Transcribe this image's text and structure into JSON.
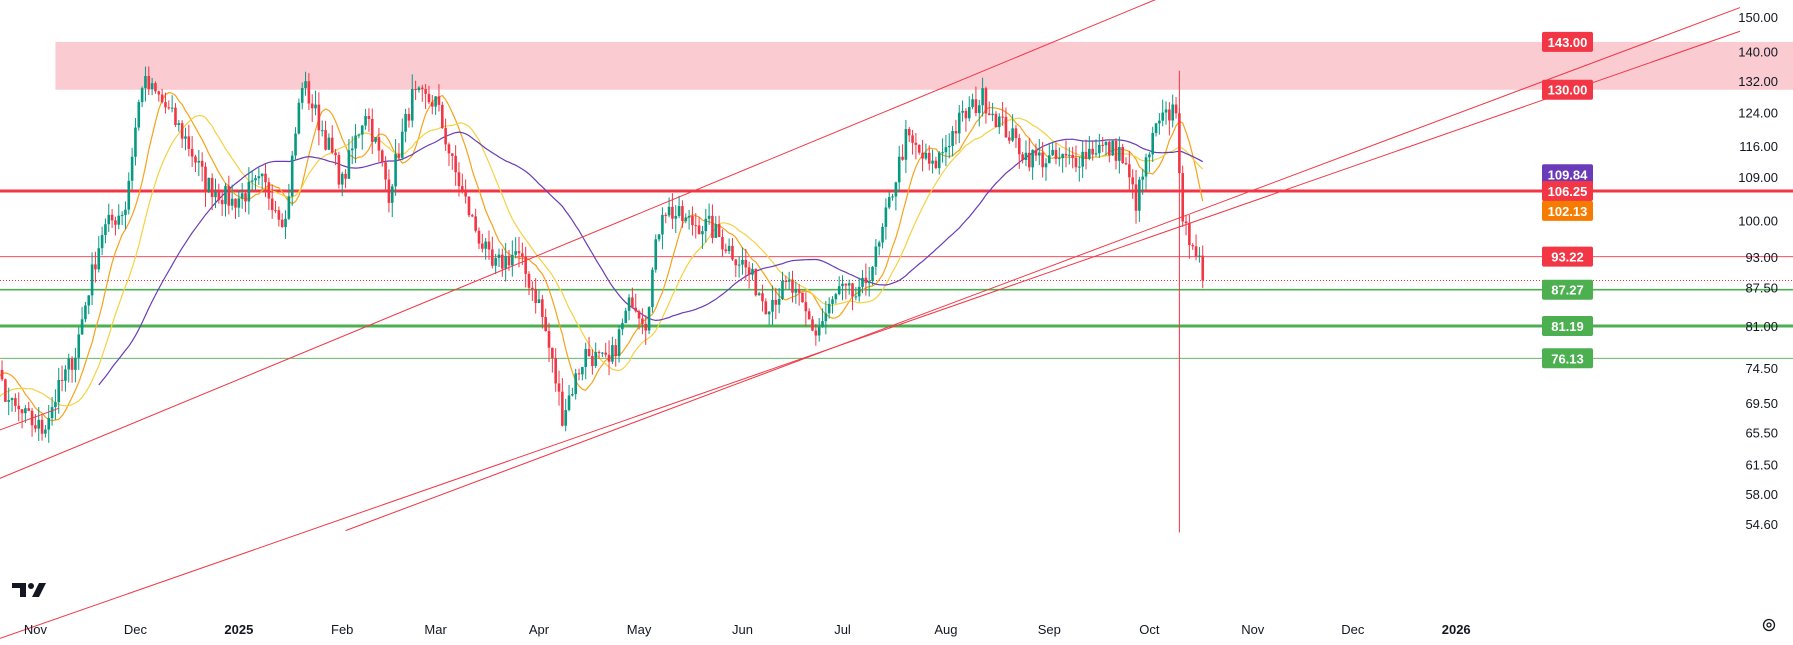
{
  "colors": {
    "up": "#089981",
    "down": "#f23645",
    "resistance": "#f23645",
    "support": "#4caf50",
    "zone_fill": "#f7a9b2",
    "ma_fast": "#f7a21b",
    "ma_mid": "#f5d142",
    "ma_slow": "#6a3bb8",
    "grid_text": "#131722"
  },
  "logo": {
    "icon": "tradingview-logo-icon"
  },
  "settings": {
    "icon": "gear-icon"
  },
  "chart_data": {
    "type": "candlestick",
    "y_scale": "log",
    "ylim": [
      53,
      153
    ],
    "xlim": [
      "2024-10-01",
      "2026-01-31"
    ],
    "y_ticks": [
      {
        "value": 150,
        "label": "150.00"
      },
      {
        "value": 140,
        "label": "140.00"
      },
      {
        "value": 132,
        "label": "132.00"
      },
      {
        "value": 124,
        "label": "124.00"
      },
      {
        "value": 116,
        "label": "116.00"
      },
      {
        "value": 109,
        "label": "109.00"
      },
      {
        "value": 100,
        "label": "100.00"
      },
      {
        "value": 93,
        "label": "93.00"
      },
      {
        "value": 87.5,
        "label": "87.50"
      },
      {
        "value": 81,
        "label": "81.00"
      },
      {
        "value": 74.5,
        "label": "74.50"
      },
      {
        "value": 69.5,
        "label": "69.50"
      },
      {
        "value": 65.5,
        "label": "65.50"
      },
      {
        "value": 61.5,
        "label": "61.50"
      },
      {
        "value": 58,
        "label": "58.00"
      },
      {
        "value": 54.6,
        "label": "54.60"
      }
    ],
    "x_ticks": [
      {
        "date": "2024-11-01",
        "label": "Nov",
        "bold": false
      },
      {
        "date": "2024-12-01",
        "label": "Dec",
        "bold": false
      },
      {
        "date": "2025-01-01",
        "label": "2025",
        "bold": true
      },
      {
        "date": "2025-02-01",
        "label": "Feb",
        "bold": false
      },
      {
        "date": "2025-03-01",
        "label": "Mar",
        "bold": false
      },
      {
        "date": "2025-04-01",
        "label": "Apr",
        "bold": false
      },
      {
        "date": "2025-05-01",
        "label": "May",
        "bold": false
      },
      {
        "date": "2025-06-01",
        "label": "Jun",
        "bold": false
      },
      {
        "date": "2025-07-01",
        "label": "Jul",
        "bold": false
      },
      {
        "date": "2025-08-01",
        "label": "Aug",
        "bold": false
      },
      {
        "date": "2025-09-01",
        "label": "Sep",
        "bold": false
      },
      {
        "date": "2025-10-01",
        "label": "Oct",
        "bold": false
      },
      {
        "date": "2025-11-01",
        "label": "Nov",
        "bold": false
      },
      {
        "date": "2025-12-01",
        "label": "Dec",
        "bold": false
      },
      {
        "date": "2026-01-01",
        "label": "2026",
        "bold": true
      }
    ],
    "resistance_zone": {
      "low": 130.0,
      "high": 143.0,
      "start": "2024-11-07"
    },
    "horizontal_levels": [
      {
        "value": 106.25,
        "label": "106.25",
        "kind": "resistance",
        "weight": "thick"
      },
      {
        "value": 93.22,
        "label": "93.22",
        "kind": "resistance",
        "weight": "thin"
      },
      {
        "value": 87.27,
        "label": "87.27",
        "kind": "support",
        "weight": "medium"
      },
      {
        "value": 81.19,
        "label": "81.19",
        "kind": "support",
        "weight": "thick"
      },
      {
        "value": 76.13,
        "label": "76.13",
        "kind": "support",
        "weight": "thin"
      }
    ],
    "current_price_line": {
      "value": 88.9
    },
    "badges": [
      {
        "value": 143.0,
        "label": "143.00",
        "color": "#f23645"
      },
      {
        "value": 130.0,
        "label": "130.00",
        "color": "#f23645"
      },
      {
        "value": 109.84,
        "label": "109.84",
        "color": "#6a3bb8"
      },
      {
        "value": 106.25,
        "label": "106.25",
        "color": "#f23645"
      },
      {
        "value": 102.13,
        "label": "102.13",
        "color": "#f57c00"
      },
      {
        "value": 93.22,
        "label": "93.22",
        "color": "#f23645"
      },
      {
        "value": 87.27,
        "label": "87.27",
        "color": "#4caf50"
      },
      {
        "value": 81.19,
        "label": "81.19",
        "color": "#4caf50"
      },
      {
        "value": 76.13,
        "label": "76.13",
        "color": "#4caf50"
      }
    ],
    "trendlines": [
      {
        "name": "channel-upper",
        "p1": {
          "date": "2025-03-14",
          "value": 89.0
        },
        "p2": {
          "date": "2025-08-15",
          "value": 136.0
        }
      },
      {
        "name": "channel-lower",
        "p1": {
          "date": "2025-06-24",
          "value": 77.0
        },
        "p2": {
          "date": "2025-10-16",
          "value": 100.3
        }
      },
      {
        "name": "lower-trendline",
        "p1": {
          "date": "2025-02-02",
          "value": 54.0
        },
        "p2": {
          "date": "2025-04-08",
          "value": 63.5
        }
      },
      {
        "name": "early-trendline",
        "p1": {
          "date": "2024-10-01",
          "value": 62.8
        },
        "p2": {
          "date": "2024-11-08",
          "value": 68.9
        }
      }
    ],
    "spike_line": {
      "date": "2025-10-10",
      "low": 53.8,
      "high": 135.0
    },
    "price_anchors": [
      [
        "2024-10-01",
        66
      ],
      [
        "2024-10-12",
        70
      ],
      [
        "2024-10-18",
        76
      ],
      [
        "2024-10-25",
        69
      ],
      [
        "2024-11-03",
        66
      ],
      [
        "2024-11-13",
        77
      ],
      [
        "2024-11-21",
        98
      ],
      [
        "2024-11-28",
        103
      ],
      [
        "2024-12-03",
        132
      ],
      [
        "2024-12-08",
        128
      ],
      [
        "2024-12-16",
        118
      ],
      [
        "2024-12-22",
        108
      ],
      [
        "2024-12-30",
        104
      ],
      [
        "2025-01-08",
        108
      ],
      [
        "2025-01-15",
        100
      ],
      [
        "2025-01-20",
        132
      ],
      [
        "2025-01-25",
        122
      ],
      [
        "2025-02-01",
        108
      ],
      [
        "2025-02-08",
        125
      ],
      [
        "2025-02-15",
        106
      ],
      [
        "2025-02-22",
        128
      ],
      [
        "2025-03-01",
        127
      ],
      [
        "2025-03-06",
        112
      ],
      [
        "2025-03-12",
        100
      ],
      [
        "2025-03-18",
        91
      ],
      [
        "2025-03-25",
        94
      ],
      [
        "2025-04-01",
        85
      ],
      [
        "2025-04-08",
        68
      ],
      [
        "2025-04-15",
        77
      ],
      [
        "2025-04-22",
        75
      ],
      [
        "2025-04-29",
        86
      ],
      [
        "2025-05-03",
        82
      ],
      [
        "2025-05-08",
        103
      ],
      [
        "2025-05-15",
        100
      ],
      [
        "2025-05-22",
        99
      ],
      [
        "2025-06-01",
        92
      ],
      [
        "2025-06-08",
        85
      ],
      [
        "2025-06-15",
        88
      ],
      [
        "2025-06-23",
        80
      ],
      [
        "2025-06-30",
        87
      ],
      [
        "2025-07-06",
        86
      ],
      [
        "2025-07-12",
        95
      ],
      [
        "2025-07-20",
        118
      ],
      [
        "2025-07-28",
        111
      ],
      [
        "2025-08-05",
        122
      ],
      [
        "2025-08-12",
        128
      ],
      [
        "2025-08-18",
        121
      ],
      [
        "2025-08-25",
        114
      ],
      [
        "2025-09-01",
        113
      ],
      [
        "2025-09-08",
        113
      ],
      [
        "2025-09-15",
        116
      ],
      [
        "2025-09-22",
        115
      ],
      [
        "2025-09-27",
        104
      ],
      [
        "2025-10-03",
        120
      ],
      [
        "2025-10-09",
        126
      ],
      [
        "2025-10-11",
        98
      ],
      [
        "2025-10-14",
        97
      ],
      [
        "2025-10-17",
        88.9
      ]
    ],
    "moving_averages": [
      {
        "name": "ma-fast",
        "period": 9,
        "color": "#f7a21b"
      },
      {
        "name": "ma-mid",
        "period": 20,
        "color": "#f5d142"
      },
      {
        "name": "ma-slow",
        "period": 50,
        "color": "#6a3bb8"
      }
    ]
  }
}
